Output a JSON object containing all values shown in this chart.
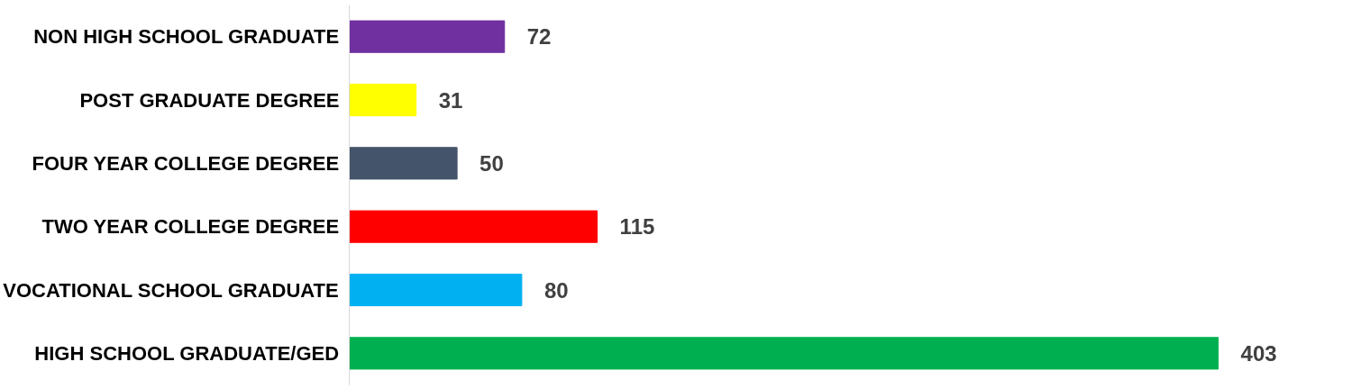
{
  "chart_data": {
    "type": "bar",
    "orientation": "horizontal",
    "data_labels": true,
    "categories": [
      "NON HIGH SCHOOL GRADUATE",
      "POST GRADUATE DEGREE",
      "FOUR YEAR COLLEGE DEGREE",
      "TWO YEAR COLLEGE DEGREE",
      "VOCATIONAL SCHOOL GRADUATE",
      "HIGH SCHOOL GRADUATE/GED"
    ],
    "values": [
      72,
      31,
      50,
      115,
      80,
      403
    ],
    "colors": [
      "#7030a0",
      "#ffff00",
      "#44546a",
      "#ff0000",
      "#00b0f0",
      "#00b050"
    ],
    "grid": false
  }
}
